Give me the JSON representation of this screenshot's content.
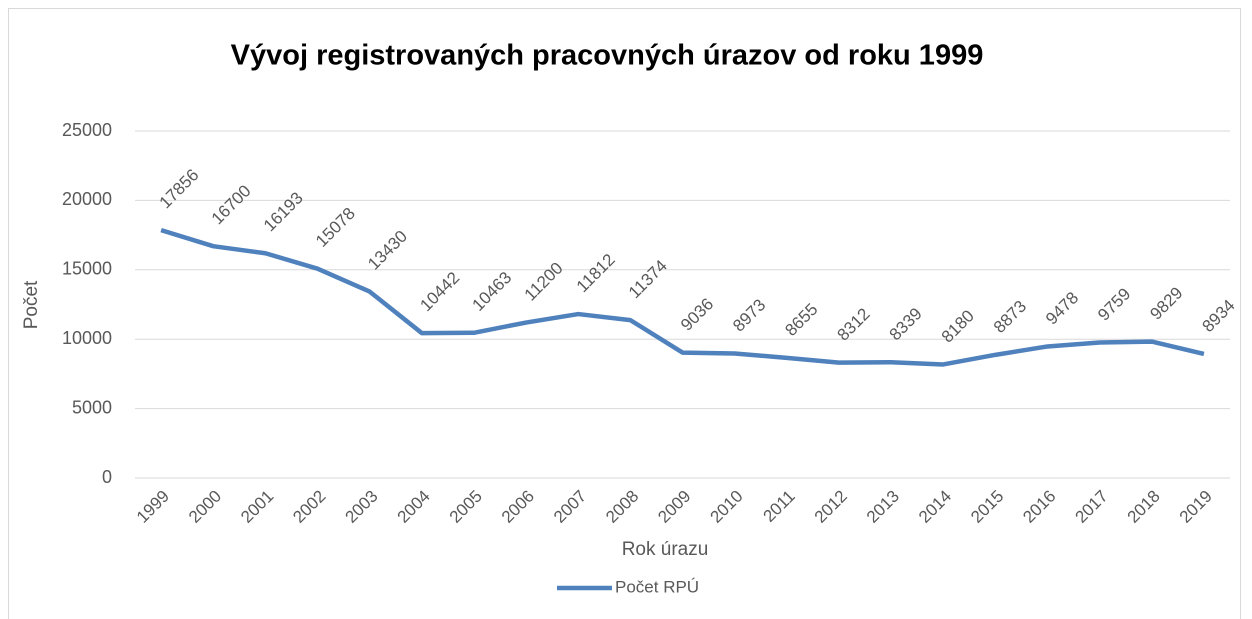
{
  "chart_data": {
    "type": "line",
    "title": "Vývoj registrovaných pracovných úrazov od roku 1999",
    "x_label": "Rok úrazu",
    "y_label": "Počet",
    "categories": [
      "1999",
      "2000",
      "2001",
      "2002",
      "2003",
      "2004",
      "2005",
      "2006",
      "2007",
      "2008",
      "2009",
      "2010",
      "2011",
      "2012",
      "2013",
      "2014",
      "2015",
      "2016",
      "2017",
      "2018",
      "2019"
    ],
    "series": [
      {
        "name": "Počet RPÚ",
        "color": "#4f81bd",
        "values": [
          17856,
          16700,
          16193,
          15078,
          13430,
          10442,
          10463,
          11200,
          11812,
          11374,
          9036,
          8973,
          8655,
          8312,
          8339,
          8180,
          8873,
          9478,
          9759,
          9829,
          8934
        ]
      }
    ],
    "ylim": [
      0,
      25000
    ],
    "yticks": [
      0,
      5000,
      10000,
      15000,
      20000,
      25000
    ],
    "grid": true,
    "legend": "bottom"
  }
}
